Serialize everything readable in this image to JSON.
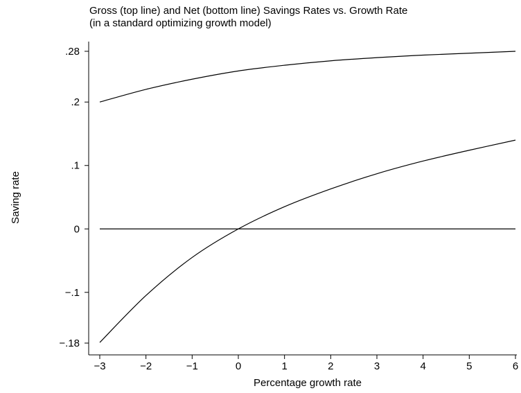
{
  "chart_data": {
    "type": "line",
    "title": "Gross (top line) and Net (bottom line) Savings Rates vs. Growth Rate",
    "subtitle": "(in a standard optimizing growth model)",
    "xlabel": "Percentage growth rate",
    "ylabel": "Saving rate",
    "xlim": [
      -3,
      6
    ],
    "ylim": [
      -0.18,
      0.28
    ],
    "x_ticks": [
      -3,
      -2,
      -1,
      0,
      1,
      2,
      3,
      4,
      5,
      6
    ],
    "x_tick_labels": [
      "−3",
      "−2",
      "−1",
      "0",
      "1",
      "2",
      "3",
      "4",
      "5",
      "6"
    ],
    "y_ticks": [
      -0.18,
      -0.1,
      0,
      0.1,
      0.2,
      0.28
    ],
    "y_tick_labels": [
      "−.18",
      "−.1",
      "0",
      ".1",
      ".2",
      ".28"
    ],
    "grid": false,
    "x": [
      -3,
      -2,
      -1,
      0,
      1,
      2,
      3,
      4,
      5,
      6
    ],
    "series": [
      {
        "values": [
          0.2,
          0.22,
          0.236,
          0.249,
          0.258,
          0.265,
          0.27,
          0.274,
          0.277,
          0.28
        ]
      },
      {
        "values": [
          -0.179,
          -0.105,
          -0.045,
          0.0,
          0.035,
          0.063,
          0.087,
          0.107,
          0.124,
          0.14
        ]
      },
      {
        "values": [
          0,
          0,
          0,
          0,
          0,
          0,
          0,
          0,
          0,
          0
        ]
      }
    ]
  }
}
